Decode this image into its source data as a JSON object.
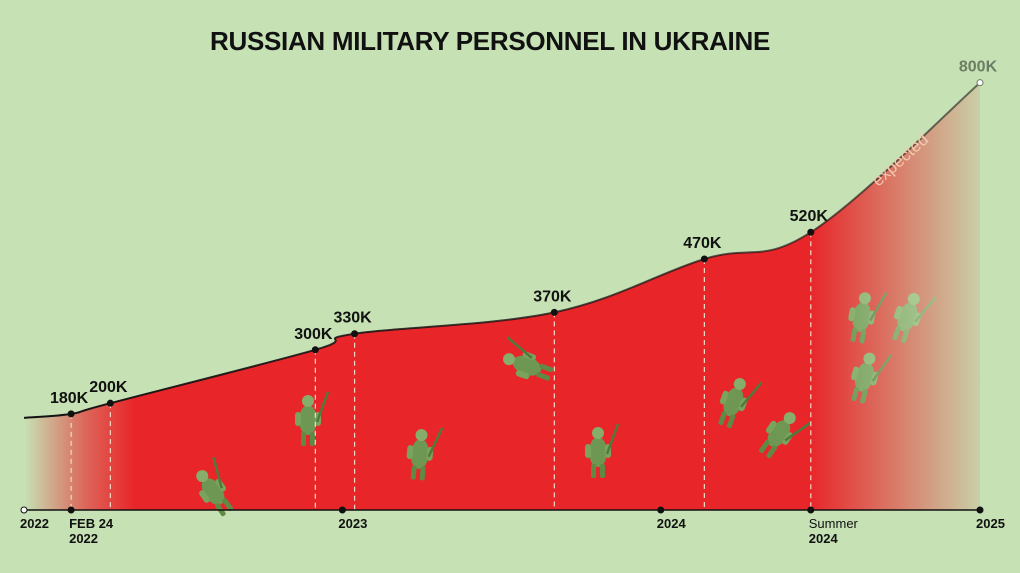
{
  "chart_data": {
    "type": "area",
    "title": "RUSSIAN MILITARY PERSONNEL IN UKRAINE",
    "x_ticks": [
      {
        "date": "2022-01-01",
        "label": "2022",
        "sub": ""
      },
      {
        "date": "2022-02-24",
        "label": "FEB 24",
        "sub": "2022"
      },
      {
        "date": "2023-01-01",
        "label": "2023",
        "sub": ""
      },
      {
        "date": "2024-01-01",
        "label": "2024",
        "sub": ""
      },
      {
        "date": "2024-06-21",
        "label": "Summer",
        "sub": "2024"
      },
      {
        "date": "2025-01-01",
        "label": "2025",
        "sub": ""
      }
    ],
    "points": [
      {
        "date": "2022-02-24",
        "value": 180000,
        "label": "180K"
      },
      {
        "date": "2022-04-10",
        "value": 200000,
        "label": "200K"
      },
      {
        "date": "2022-12-01",
        "value": 300000,
        "label": "300K"
      },
      {
        "date": "2023-01-15",
        "value": 330000,
        "label": "330K"
      },
      {
        "date": "2023-09-01",
        "value": 370000,
        "label": "370K"
      },
      {
        "date": "2024-02-20",
        "value": 470000,
        "label": "470K"
      },
      {
        "date": "2024-06-21",
        "value": 520000,
        "label": "520K"
      },
      {
        "date": "2025-01-01",
        "value": 800000,
        "label": "800K",
        "expected": true
      }
    ],
    "expected_label": "expected",
    "colors": {
      "background": "#c6e2b5",
      "area": "#e8262a",
      "line": "#111111",
      "soldier": "#7aa35e",
      "soldier_dark": "#4f7a3c"
    }
  }
}
